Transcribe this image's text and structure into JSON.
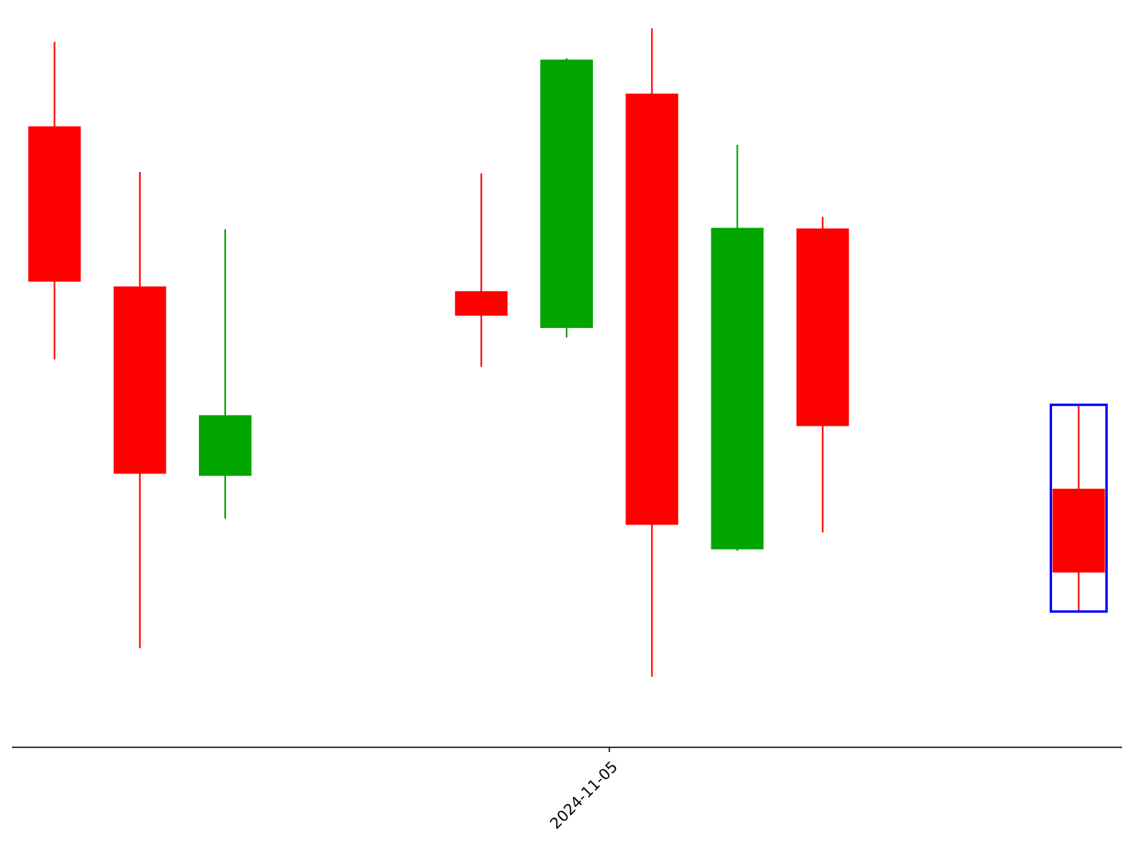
{
  "chart_data": {
    "type": "candlestick",
    "title": "",
    "xlabel": "",
    "ylabel": "",
    "x_ticks": [
      {
        "slot": 6.5,
        "label": "2024-11-05"
      }
    ],
    "y_axis_visible": false,
    "grid": false,
    "ylim": [
      0,
      100
    ],
    "colors": {
      "up": "#00a500",
      "down": "#ff0000",
      "highlight": "#0000ff",
      "axis": "#000000"
    },
    "candles": [
      {
        "slot": 0,
        "open": 86.6,
        "high": 99.0,
        "low": 52.4,
        "close": 63.8
      },
      {
        "slot": 1,
        "open": 63.1,
        "high": 79.9,
        "low": 10.0,
        "close": 35.6
      },
      {
        "slot": 2,
        "open": 35.3,
        "high": 71.5,
        "low": 29.0,
        "close": 44.2
      },
      {
        "slot": 5,
        "open": 62.4,
        "high": 79.7,
        "low": 51.3,
        "close": 58.8
      },
      {
        "slot": 6,
        "open": 57.0,
        "high": 96.6,
        "low": 55.6,
        "close": 96.4
      },
      {
        "slot": 7,
        "open": 91.4,
        "high": 101.0,
        "low": 5.8,
        "close": 28.1
      },
      {
        "slot": 8,
        "open": 24.5,
        "high": 83.9,
        "low": 24.3,
        "close": 71.7
      },
      {
        "slot": 9,
        "open": 71.6,
        "high": 73.3,
        "low": 27.0,
        "close": 42.6
      },
      {
        "slot": 12,
        "open": 33.4,
        "high": 45.6,
        "low": 15.5,
        "close": 21.1,
        "highlighted": true
      }
    ]
  }
}
